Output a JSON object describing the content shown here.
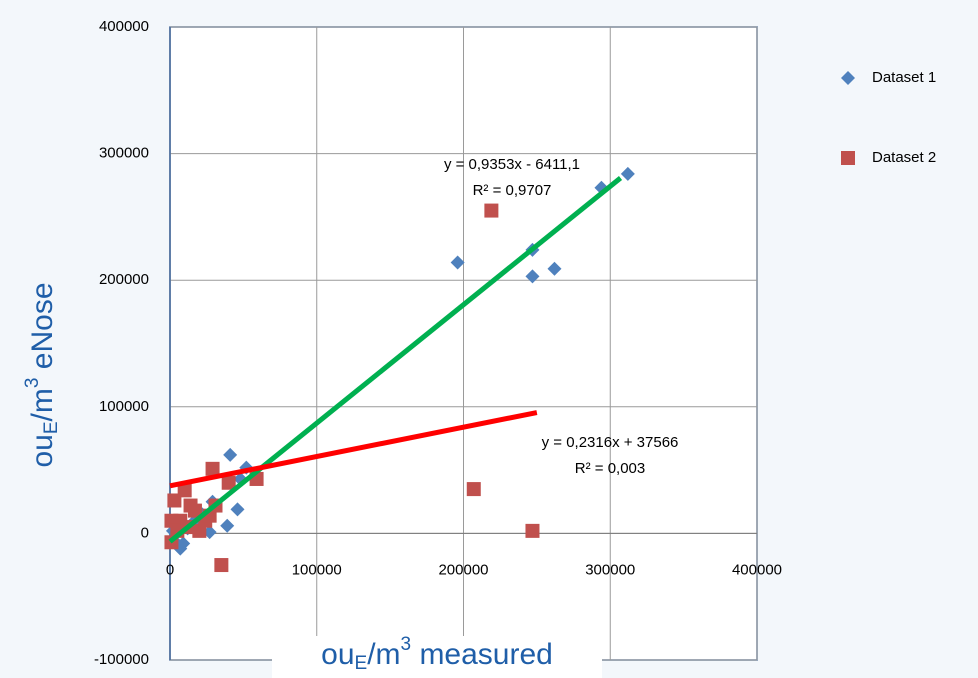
{
  "chart_data": {
    "type": "scatter",
    "xlabel_parts": [
      "ou",
      "E",
      "/m",
      "3",
      " measured"
    ],
    "ylabel_parts": [
      "ou",
      "E",
      "/m",
      "3",
      " eNose"
    ],
    "xlim": [
      0,
      400000
    ],
    "xticks": [
      0,
      100000,
      200000,
      300000,
      400000
    ],
    "ylim": [
      -100000,
      400000
    ],
    "yticks": [
      -100000,
      0,
      100000,
      200000,
      300000,
      400000
    ],
    "grid": true,
    "legend": "right",
    "series": [
      {
        "name": "Dataset 1",
        "color": "#4f81bd",
        "marker": "diamond",
        "x": [
          312000,
          294000,
          196000,
          247000,
          247000,
          262000,
          41000,
          52000,
          46000,
          39000,
          29000,
          27000,
          7000,
          3000,
          17000,
          48000,
          12000,
          22000,
          9000,
          2000
        ],
        "values": [
          284000,
          273000,
          214000,
          224000,
          203000,
          209000,
          62000,
          52000,
          19000,
          6000,
          25000,
          1000,
          -12000,
          -6000,
          10000,
          43000,
          4000,
          15000,
          -8000,
          2000
        ]
      },
      {
        "name": "Dataset 2",
        "color": "#c0504d",
        "marker": "square",
        "x": [
          219000,
          207000,
          247000,
          29000,
          40000,
          59000,
          35000,
          1000,
          3000,
          7000,
          14000,
          20000,
          17000,
          24000,
          10000,
          1000,
          5000,
          27000,
          31000,
          12000
        ],
        "values": [
          255000,
          35000,
          2000,
          51000,
          40000,
          43000,
          -25000,
          -7000,
          26000,
          10000,
          22000,
          2000,
          18000,
          10000,
          34000,
          10000,
          2000,
          14000,
          22000,
          5000
        ]
      }
    ],
    "trendlines": [
      {
        "color": "#00b050",
        "xrange": [
          0,
          307000
        ],
        "slope": 0.9353,
        "intercept": -6411.1,
        "equation": "y = 0,9353x - 6411,1",
        "r2": "R² = 0,9707"
      },
      {
        "color": "#ff0000",
        "xrange": [
          0,
          250000
        ],
        "slope": 0.2316,
        "intercept": 37566,
        "equation": "y = 0,2316x + 37566",
        "r2": "R² = 0,003"
      }
    ]
  }
}
